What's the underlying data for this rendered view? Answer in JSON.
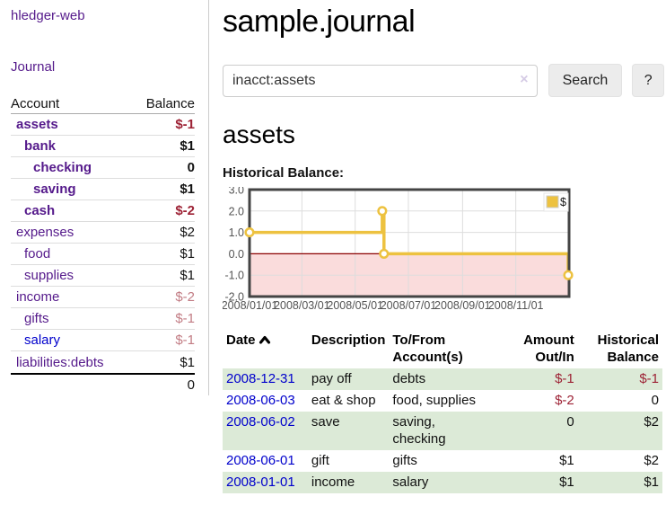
{
  "sidebar": {
    "app_title": "hledger-web",
    "nav": {
      "journal": "Journal"
    },
    "accounts": {
      "header": {
        "account": "Account",
        "balance": "Balance"
      },
      "rows": [
        {
          "name": "assets",
          "balance": "$-1",
          "depth": 1,
          "bold": true,
          "link_color": "purple",
          "balance_style": "neg-strong"
        },
        {
          "name": "bank",
          "balance": "$1",
          "depth": 2,
          "bold": true,
          "link_color": "purple",
          "balance_style": ""
        },
        {
          "name": "checking",
          "balance": "0",
          "depth": 3,
          "bold": true,
          "link_color": "purple",
          "balance_style": ""
        },
        {
          "name": "saving",
          "balance": "$1",
          "depth": 3,
          "bold": true,
          "link_color": "purple",
          "balance_style": ""
        },
        {
          "name": "cash",
          "balance": "$-2",
          "depth": 2,
          "bold": true,
          "link_color": "purple",
          "balance_style": "neg-strong"
        },
        {
          "name": "expenses",
          "balance": "$2",
          "depth": 1,
          "bold": false,
          "link_color": "purple",
          "balance_style": ""
        },
        {
          "name": "food",
          "balance": "$1",
          "depth": 2,
          "bold": false,
          "link_color": "purple",
          "balance_style": ""
        },
        {
          "name": "supplies",
          "balance": "$1",
          "depth": 2,
          "bold": false,
          "link_color": "purple",
          "balance_style": ""
        },
        {
          "name": "income",
          "balance": "$-2",
          "depth": 1,
          "bold": false,
          "link_color": "purple",
          "balance_style": "neg-soft"
        },
        {
          "name": "gifts",
          "balance": "$-1",
          "depth": 2,
          "bold": false,
          "link_color": "purple",
          "balance_style": "neg-soft"
        },
        {
          "name": "salary",
          "balance": "$-1",
          "depth": 2,
          "bold": false,
          "link_color": "blue",
          "balance_style": "neg-soft"
        },
        {
          "name": "liabilities:debts",
          "balance": "$1",
          "depth": 1,
          "bold": false,
          "link_color": "purple",
          "balance_style": ""
        }
      ],
      "total": "0"
    }
  },
  "main": {
    "title": "sample.journal",
    "search": {
      "value": "inacct:assets",
      "clear_icon": "×",
      "search_button": "Search",
      "help_button": "?"
    },
    "account_heading": "assets",
    "chart_heading": "Historical Balance:"
  },
  "chart_data": {
    "type": "line",
    "step": true,
    "title": "Historical Balance:",
    "legend": [
      {
        "label": "$",
        "color": "#edc240"
      }
    ],
    "legend_position": "top-right",
    "grid": true,
    "x_range": [
      "2008-01-01",
      "2009-01-01"
    ],
    "ylim": [
      -2,
      3
    ],
    "y_ticks": [
      {
        "value": 3,
        "label": "3.0"
      },
      {
        "value": 2,
        "label": "2.0"
      },
      {
        "value": 1,
        "label": "1.0"
      },
      {
        "value": 0,
        "label": "0.0"
      },
      {
        "value": -1,
        "label": "-1.0"
      },
      {
        "value": -2,
        "label": "-2.0"
      }
    ],
    "x_ticks": [
      {
        "date": "2008-01-01",
        "label": "2008/01/01"
      },
      {
        "date": "2008-03-01",
        "label": "2008/03/01"
      },
      {
        "date": "2008-05-01",
        "label": "2008/05/01"
      },
      {
        "date": "2008-07-01",
        "label": "2008/07/01"
      },
      {
        "date": "2008-09-01",
        "label": "2008/09/01"
      },
      {
        "date": "2008-11-01",
        "label": "2008/11/01"
      }
    ],
    "points": [
      {
        "x": "2008-01-01",
        "y": 1
      },
      {
        "x": "2008-06-01",
        "y": 2
      },
      {
        "x": "2008-06-03",
        "y": 0
      },
      {
        "x": "2008-12-31",
        "y": -1
      }
    ],
    "colors": {
      "line": "#edc240",
      "marker_fill": "#ffffff",
      "negative_region": "#fadcdc",
      "zero_line": "#8b0000",
      "grid": "#dddddd",
      "border": "#444444",
      "tick_text": "#545454"
    }
  },
  "register": {
    "headers": {
      "date": "Date",
      "description": "Description",
      "accounts": "To/From Account(s)",
      "amount": "Amount Out/In",
      "balance": "Historical Balance"
    },
    "sort_icon": "chevron-up",
    "rows": [
      {
        "date": "2008-12-31",
        "description": "pay off",
        "accounts": "debts",
        "amount": "$-1",
        "balance": "$-1"
      },
      {
        "date": "2008-06-03",
        "description": "eat & shop",
        "accounts": "food, supplies",
        "amount": "$-2",
        "balance": "0"
      },
      {
        "date": "2008-06-02",
        "description": "save",
        "accounts": "saving, checking",
        "amount": "0",
        "balance": "$2"
      },
      {
        "date": "2008-06-01",
        "description": "gift",
        "accounts": "gifts",
        "amount": "$1",
        "balance": "$2"
      },
      {
        "date": "2008-01-01",
        "description": "income",
        "accounts": "salary",
        "amount": "$1",
        "balance": "$1"
      }
    ]
  }
}
